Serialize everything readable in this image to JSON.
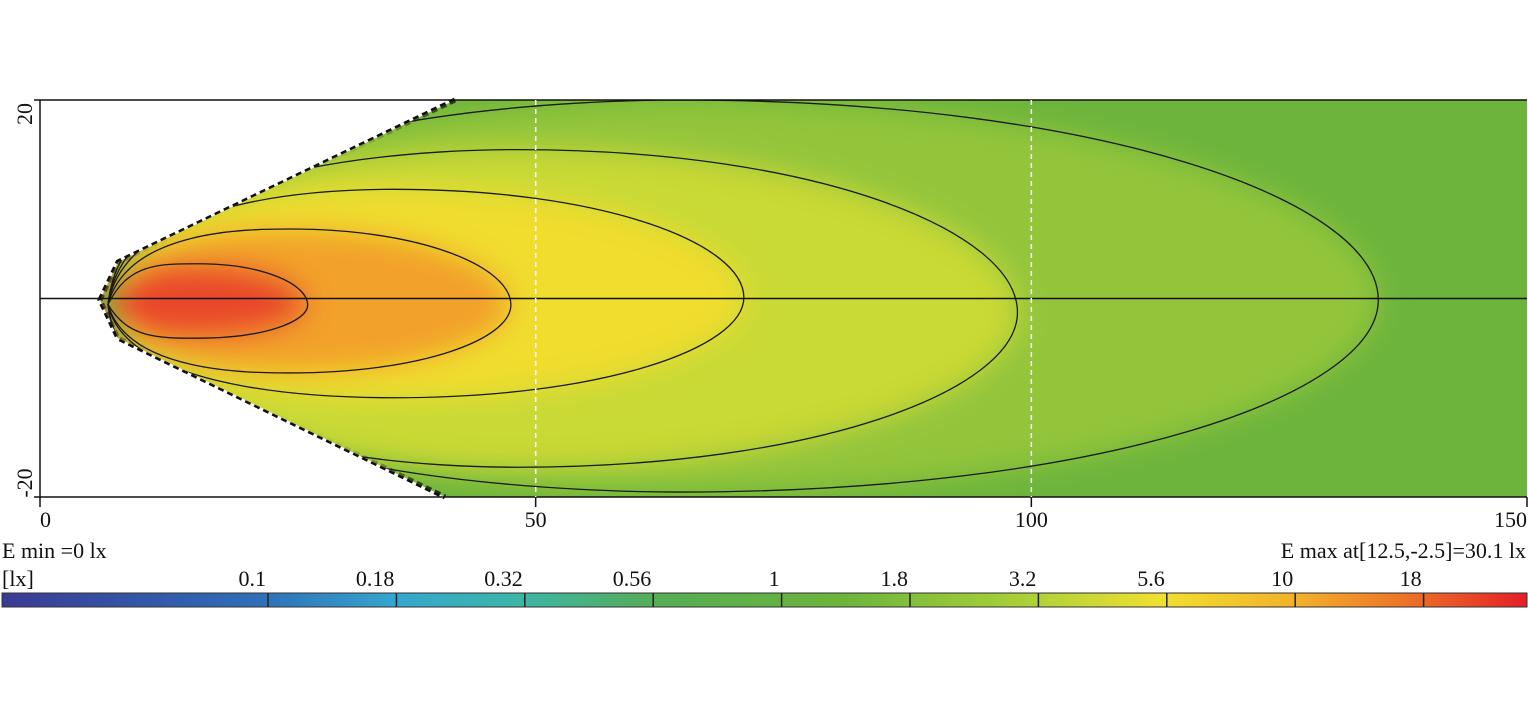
{
  "chart_data": {
    "type": "contour",
    "xlim": [
      0,
      150
    ],
    "ylim": [
      -20,
      20
    ],
    "xticks": [
      0,
      50,
      100,
      150
    ],
    "yticks": [
      -20,
      20
    ],
    "grid": true,
    "contours": [
      {
        "level": 1,
        "x_max": 135,
        "y_top": 20,
        "y_bottom": -19.5,
        "color": "#93c53a"
      },
      {
        "level": 1.8,
        "x_max": 98.6,
        "y_top": 15,
        "y_bottom": -17,
        "color": "#c9d935"
      },
      {
        "level": 3.2,
        "x_max": 71,
        "y_top": 11,
        "y_bottom": -10,
        "color": "#f0dd2e"
      },
      {
        "level": 5.6,
        "x_max": 47.5,
        "y_top": 7,
        "y_bottom": -7.5,
        "color": "#f2a12a"
      },
      {
        "level": 10,
        "x_max": 27,
        "y_top": 3.5,
        "y_bottom": -4,
        "color": "#e9482a"
      }
    ],
    "e_min_label": "E min =0 lx",
    "e_max_label": "E max at[12.5,-2.5]=30.1 lx",
    "colorbar": {
      "unit": "[lx]",
      "ticks": [
        0.1,
        0.18,
        0.32,
        0.56,
        1,
        1.8,
        3.2,
        5.6,
        10,
        18
      ]
    }
  }
}
